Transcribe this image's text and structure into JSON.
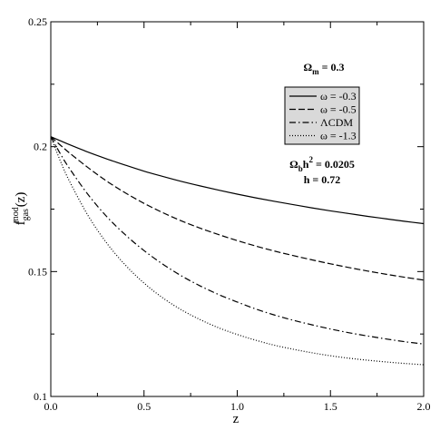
{
  "chart_data": {
    "type": "line",
    "xlabel": "z",
    "ylabel": {
      "base": "f",
      "sub": "gas",
      "sup": "mod",
      "tail": "(z)"
    },
    "xlim": [
      0,
      2
    ],
    "ylim": [
      0.1,
      0.25
    ],
    "xticks": [
      {
        "value": 0,
        "label": "0.0"
      },
      {
        "value": 0.5,
        "label": "0.5"
      },
      {
        "value": 1,
        "label": "1.0"
      },
      {
        "value": 1.5,
        "label": "1.5"
      },
      {
        "value": 2,
        "label": "2.0"
      }
    ],
    "yticks": [
      {
        "value": 0.1,
        "label": "0.1"
      },
      {
        "value": 0.15,
        "label": "0.15"
      },
      {
        "value": 0.2,
        "label": "0.2"
      },
      {
        "value": 0.25,
        "label": "0.25"
      }
    ],
    "grid": false,
    "legend_placement": "top-right",
    "legend_header": {
      "sym": "Ω",
      "sub": "m",
      "rest": " = 0.3"
    },
    "annotations": [
      {
        "sym": "Ω",
        "sub": "b",
        "mid": "h",
        "sup": "2",
        "rest": " = 0.0205"
      },
      {
        "text": "h = 0.72"
      }
    ],
    "series": [
      {
        "name": "ω = -0.3",
        "dash": "solid",
        "x": [
          0,
          0.05,
          0.1,
          0.2,
          0.3,
          0.4,
          0.5,
          0.6,
          0.7,
          0.8,
          0.9,
          1.0,
          1.1,
          1.2,
          1.3,
          1.4,
          1.5,
          1.6,
          1.7,
          1.8,
          1.9,
          2.0
        ],
        "y": [
          0.204,
          0.2024,
          0.2008,
          0.1978,
          0.1951,
          0.1926,
          0.1902,
          0.1881,
          0.1861,
          0.1843,
          0.1826,
          0.181,
          0.1795,
          0.1781,
          0.1768,
          0.1755,
          0.1743,
          0.1732,
          0.1721,
          0.1711,
          0.1701,
          0.1692
        ]
      },
      {
        "name": "ω = -0.5",
        "dash": "dashed",
        "x": [
          0,
          0.05,
          0.1,
          0.2,
          0.3,
          0.4,
          0.5,
          0.6,
          0.7,
          0.8,
          0.9,
          1.0,
          1.1,
          1.2,
          1.3,
          1.4,
          1.5,
          1.6,
          1.7,
          1.8,
          1.9,
          2.0
        ],
        "y": [
          0.204,
          0.2007,
          0.1975,
          0.1916,
          0.1862,
          0.1815,
          0.1773,
          0.1736,
          0.1703,
          0.1674,
          0.1648,
          0.1624,
          0.1602,
          0.1582,
          0.1564,
          0.1547,
          0.1531,
          0.1516,
          0.1502,
          0.1489,
          0.1477,
          0.1466
        ]
      },
      {
        "name": "ΛCDM",
        "dash": "dashdot",
        "x": [
          0,
          0.05,
          0.1,
          0.2,
          0.3,
          0.4,
          0.5,
          0.6,
          0.7,
          0.8,
          0.9,
          1.0,
          1.1,
          1.2,
          1.3,
          1.4,
          1.5,
          1.6,
          1.7,
          1.8,
          1.9,
          2.0
        ],
        "y": [
          0.204,
          0.1973,
          0.1913,
          0.1808,
          0.172,
          0.1647,
          0.1584,
          0.153,
          0.1483,
          0.1443,
          0.1408,
          0.1378,
          0.135,
          0.1326,
          0.1305,
          0.1287,
          0.127,
          0.1255,
          0.1242,
          0.123,
          0.1219,
          0.121
        ]
      },
      {
        "name": "ω = -1.3",
        "dash": "dotted",
        "x": [
          0,
          0.05,
          0.1,
          0.2,
          0.3,
          0.4,
          0.5,
          0.6,
          0.7,
          0.8,
          0.9,
          1.0,
          1.1,
          1.2,
          1.3,
          1.4,
          1.5,
          1.6,
          1.7,
          1.8,
          1.9,
          2.0
        ],
        "y": [
          0.204,
          0.1945,
          0.1862,
          0.1724,
          0.1614,
          0.1526,
          0.1454,
          0.1395,
          0.1347,
          0.1308,
          0.1275,
          0.1248,
          0.1225,
          0.1205,
          0.1189,
          0.1175,
          0.1163,
          0.1153,
          0.1145,
          0.1138,
          0.1132,
          0.1127
        ]
      }
    ]
  }
}
